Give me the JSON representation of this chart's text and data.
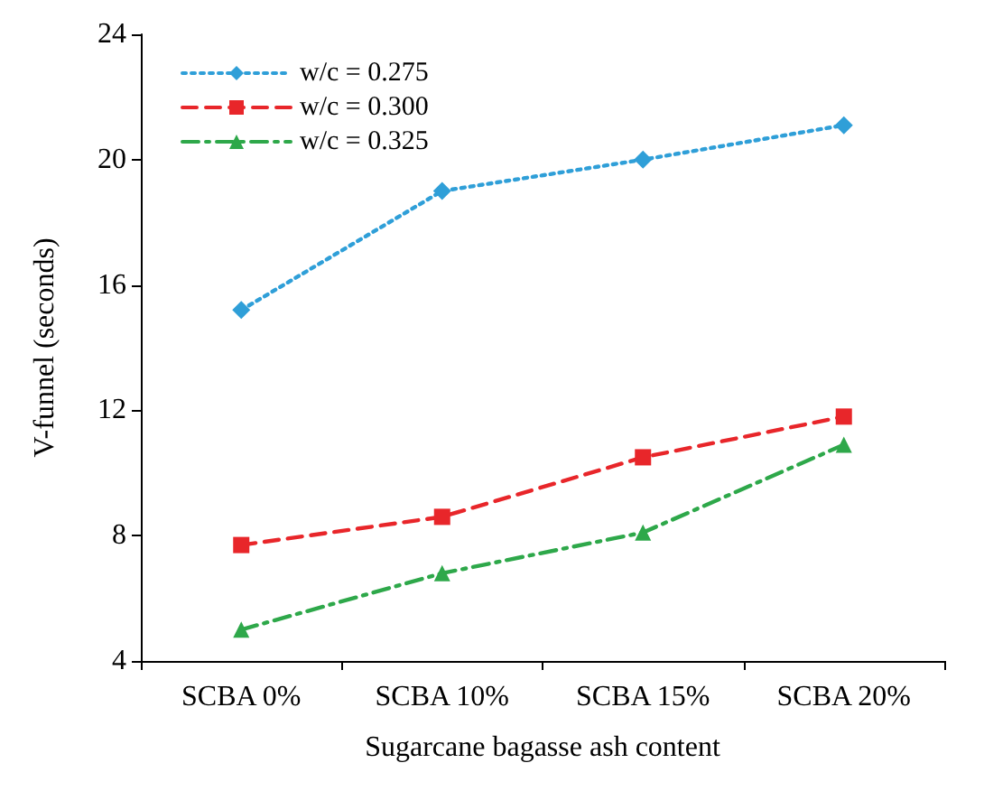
{
  "chart_data": {
    "type": "line",
    "xlabel": "Sugarcane bagasse ash content",
    "ylabel": "V-funnel (seconds)",
    "categories": [
      "SCBA 0%",
      "SCBA 10%",
      "SCBA 15%",
      "SCBA 20%"
    ],
    "series": [
      {
        "name": "w/c = 0.275",
        "color": "#2f9fd8",
        "marker": "diamond",
        "line_style": "dotted",
        "values": [
          15.2,
          19.0,
          20.0,
          21.1
        ]
      },
      {
        "name": "w/c = 0.300",
        "color": "#e8262a",
        "marker": "square",
        "line_style": "dashed",
        "values": [
          7.7,
          8.6,
          10.5,
          11.8
        ]
      },
      {
        "name": "w/c = 0.325",
        "color": "#2ea84a",
        "marker": "triangle",
        "line_style": "dashdot",
        "values": [
          5.0,
          6.8,
          8.1,
          10.9
        ]
      }
    ],
    "ylim": [
      4,
      24
    ],
    "yticks": [
      4,
      8,
      12,
      16,
      20,
      24
    ],
    "grid": false,
    "legend": "top left"
  }
}
